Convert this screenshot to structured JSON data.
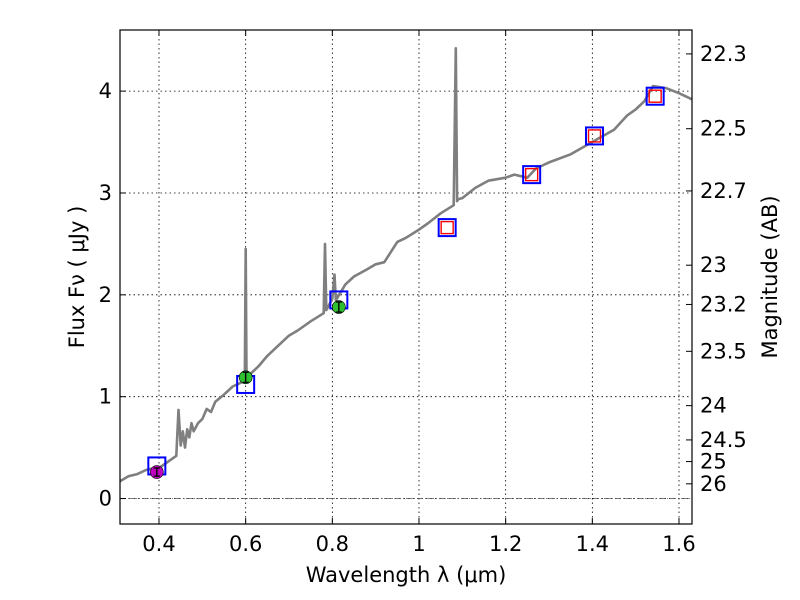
{
  "chart_data": {
    "type": "line",
    "title": "",
    "xlabel": "Wavelength  λ (μm)",
    "ylabel": "Flux  Fν  ( μJy )",
    "y2label": "Magnitude (AB)",
    "xlim": [
      0.31,
      1.63
    ],
    "ylim": [
      -0.25,
      4.6
    ],
    "grid": true,
    "x_ticks": [
      0.4,
      0.6,
      0.8,
      1,
      1.2,
      1.4,
      1.6
    ],
    "x_tick_labels": [
      "0.4",
      "0.6",
      "0.8",
      "1",
      "1.2",
      "1.4",
      "1.6"
    ],
    "y_ticks": [
      0,
      1,
      2,
      3,
      4
    ],
    "y_tick_labels": [
      "0",
      "1",
      "2",
      "3",
      "4"
    ],
    "y2_ticks": [
      22.3,
      22.5,
      22.7,
      23,
      23.2,
      23.5,
      24,
      24.5,
      25,
      26
    ],
    "y2_tick_labels": [
      "22.3",
      "22.5",
      "22.7",
      "23",
      "23.2",
      "23.5",
      "24",
      "24.5",
      "25",
      "26"
    ],
    "colors": {
      "spectrum": "#7f7f7f",
      "model_box": "#0000ff",
      "model_box_inner": "#ff0000",
      "obs_green": "#2ec02e",
      "obs_magenta": "#bf00bf",
      "baseline": "#555555"
    },
    "series": [
      {
        "name": "spectrum",
        "x": [
          0.31,
          0.33,
          0.35,
          0.37,
          0.39,
          0.4,
          0.42,
          0.44,
          0.445,
          0.45,
          0.455,
          0.46,
          0.465,
          0.47,
          0.475,
          0.48,
          0.49,
          0.5,
          0.51,
          0.52,
          0.53,
          0.55,
          0.57,
          0.59,
          0.598,
          0.6,
          0.602,
          0.61,
          0.63,
          0.65,
          0.68,
          0.7,
          0.72,
          0.75,
          0.78,
          0.783,
          0.786,
          0.79,
          0.8,
          0.805,
          0.808,
          0.81,
          0.83,
          0.85,
          0.88,
          0.9,
          0.92,
          0.95,
          0.97,
          1.0,
          1.02,
          1.05,
          1.08,
          1.085,
          1.088,
          1.091,
          1.1,
          1.13,
          1.16,
          1.2,
          1.22,
          1.25,
          1.27,
          1.3,
          1.35,
          1.4,
          1.45,
          1.48,
          1.5,
          1.52,
          1.54,
          1.57,
          1.6,
          1.63
        ],
        "y": [
          0.17,
          0.22,
          0.24,
          0.28,
          0.3,
          0.3,
          0.36,
          0.42,
          0.87,
          0.52,
          0.66,
          0.5,
          0.68,
          0.6,
          0.74,
          0.66,
          0.74,
          0.78,
          0.88,
          0.85,
          0.95,
          1.02,
          1.1,
          1.14,
          1.16,
          2.45,
          1.2,
          1.22,
          1.3,
          1.4,
          1.52,
          1.6,
          1.65,
          1.74,
          1.82,
          2.5,
          1.85,
          1.88,
          1.96,
          2.2,
          1.95,
          1.96,
          2.1,
          2.18,
          2.25,
          2.3,
          2.32,
          2.52,
          2.56,
          2.64,
          2.7,
          2.8,
          2.88,
          4.42,
          2.92,
          2.94,
          2.95,
          3.05,
          3.12,
          3.15,
          3.18,
          3.15,
          3.24,
          3.3,
          3.38,
          3.5,
          3.62,
          3.76,
          3.82,
          3.9,
          4.05,
          4.03,
          3.98,
          3.92
        ]
      },
      {
        "name": "model photometry (boxes)",
        "x": [
          0.395,
          0.6,
          0.815,
          1.065,
          1.26,
          1.405,
          1.545
        ],
        "y": [
          0.32,
          1.12,
          1.95,
          2.66,
          3.18,
          3.56,
          3.95
        ]
      },
      {
        "name": "observed photometry (points)",
        "x": [
          0.395,
          0.6,
          0.815
        ],
        "y": [
          0.26,
          1.19,
          1.88
        ],
        "yerr": [
          0.04,
          0.05,
          0.05
        ]
      }
    ]
  }
}
